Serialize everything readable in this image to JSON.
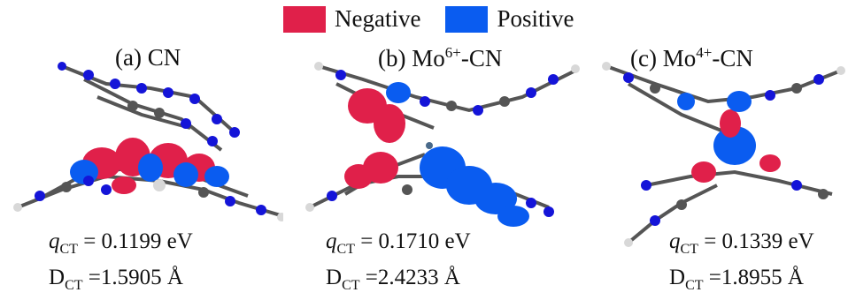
{
  "legend": {
    "negative": {
      "label": "Negative",
      "color": "#e0204a"
    },
    "positive": {
      "label": "Positive",
      "color": "#0a5cf0"
    }
  },
  "atom_colors": {
    "nitrogen": "#1414d8",
    "carbon": "#555555",
    "hydrogen": "#d8d8d8"
  },
  "panels": [
    {
      "label": "(a) CN",
      "title_base": "",
      "title_sup": "",
      "title_tail": "",
      "q_symbol": "q",
      "q_sub": "CT",
      "q_value": "= 0.1199 eV",
      "d_symbol": "D",
      "d_sub": "CT",
      "d_value": "=1.5905 Å"
    },
    {
      "label": "(b) Mo",
      "title_base": "",
      "title_sup": "6+",
      "title_tail": "-CN",
      "q_symbol": "q",
      "q_sub": "CT",
      "q_value": "= 0.1710 eV",
      "d_symbol": "D",
      "d_sub": "CT",
      "d_value": "=2.4233 Å"
    },
    {
      "label": "(c) Mo",
      "title_base": "",
      "title_sup": "4+",
      "title_tail": "-CN",
      "q_symbol": "q",
      "q_sub": "CT",
      "q_value": "= 0.1339 eV",
      "d_symbol": "D",
      "d_sub": "CT",
      "d_value": "=1.8955 Å"
    }
  ]
}
